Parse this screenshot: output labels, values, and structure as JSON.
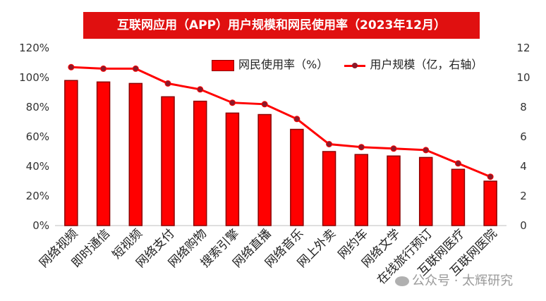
{
  "chart_data": {
    "type": "bar",
    "title": "互联网应用（APP）用户规模和网民使用率（2023年12月）",
    "categories": [
      "网络视频",
      "即时通信",
      "短视频",
      "网络支付",
      "网络购物",
      "搜索引擎",
      "网络直播",
      "网络音乐",
      "网上外卖",
      "网约车",
      "网络文学",
      "在线旅行预订",
      "互联网医疗",
      "互联网医院"
    ],
    "series": [
      {
        "name": "网民使用率（%）",
        "type": "bar",
        "axis": "left",
        "values": [
          98,
          97,
          96,
          87,
          84,
          76,
          75,
          65,
          50,
          48,
          47,
          46,
          38,
          30
        ]
      },
      {
        "name": "用户规模（亿，右轴）",
        "type": "line",
        "axis": "right",
        "values": [
          10.7,
          10.6,
          10.6,
          9.6,
          9.2,
          8.3,
          8.2,
          7.2,
          5.5,
          5.3,
          5.2,
          5.1,
          4.2,
          3.3
        ]
      }
    ],
    "left_axis": {
      "min": 0,
      "max": 120,
      "step": 20,
      "tick_labels": [
        "0%",
        "20%",
        "40%",
        "60%",
        "80%",
        "100%",
        "120%"
      ]
    },
    "right_axis": {
      "min": 0,
      "max": 12,
      "step": 2,
      "tick_labels": [
        "0",
        "2",
        "4",
        "6",
        "8",
        "10",
        "12"
      ]
    },
    "legend_position": "top-right",
    "colors": {
      "bar_fill": "#ff0000",
      "bar_border": "#8b0000",
      "line": "#ff0000",
      "marker": "#8b1a2a",
      "title_bg": "#e01010"
    }
  },
  "watermark": "公众号 · 太辉研究"
}
